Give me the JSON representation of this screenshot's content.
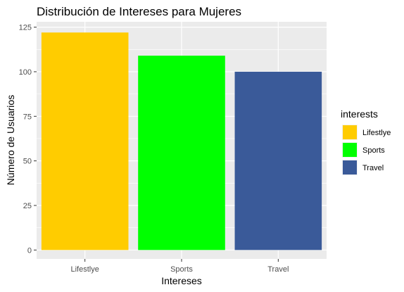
{
  "chart_data": {
    "type": "bar",
    "title": "Distribución de Intereses para Mujeres",
    "xlabel": "Intereses",
    "ylabel": "Número de Usuarios",
    "categories": [
      "Lifestlye",
      "Sports",
      "Travel"
    ],
    "values": [
      122,
      109,
      100
    ],
    "colors": [
      "#FFCC00",
      "#00FF00",
      "#3A5A99"
    ],
    "ylim": [
      -5,
      128
    ],
    "yticks": [
      0,
      25,
      50,
      75,
      100,
      125
    ],
    "grid": true,
    "panel_background": "#EBEBEB",
    "legend": {
      "title": "interests",
      "position": "right",
      "entries": [
        "Lifestlye",
        "Sports",
        "Travel"
      ]
    }
  }
}
